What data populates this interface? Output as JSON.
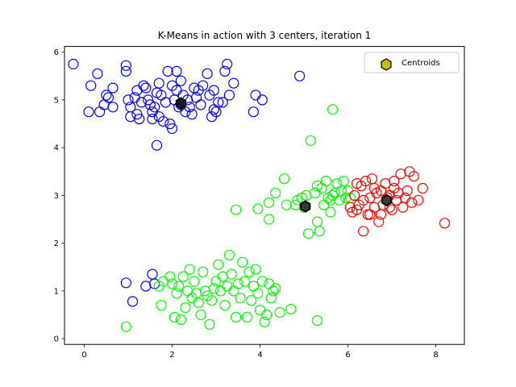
{
  "chart_data": {
    "type": "scatter",
    "title": "K-Means in action with 3 centers, iteration 1",
    "xlabel": "",
    "ylabel": "",
    "xlim": [
      -0.45,
      8.65
    ],
    "ylim": [
      -0.12,
      6.12
    ],
    "xticks": [
      0,
      2,
      4,
      6,
      8
    ],
    "yticks": [
      0,
      1,
      2,
      3,
      4,
      5,
      6
    ],
    "grid": false,
    "legend": {
      "placement": "upper right",
      "entries": [
        "Centroids"
      ]
    },
    "series": [
      {
        "color": "#0000ff",
        "marker": "open-circle",
        "points": [
          [
            -0.25,
            5.75
          ],
          [
            0.1,
            4.75
          ],
          [
            0.15,
            5.3
          ],
          [
            0.3,
            5.55
          ],
          [
            0.35,
            4.75
          ],
          [
            0.45,
            4.9
          ],
          [
            0.5,
            5.1
          ],
          [
            0.55,
            5.05
          ],
          [
            0.65,
            4.85
          ],
          [
            0.65,
            5.25
          ],
          [
            0.95,
            5.72
          ],
          [
            0.95,
            5.6
          ],
          [
            1.0,
            5.0
          ],
          [
            1.05,
            4.85
          ],
          [
            1.05,
            4.65
          ],
          [
            1.15,
            5.05
          ],
          [
            1.2,
            5.2
          ],
          [
            1.2,
            4.7
          ],
          [
            1.25,
            4.6
          ],
          [
            1.35,
            5.3
          ],
          [
            1.4,
            5.25
          ],
          [
            1.45,
            5.0
          ],
          [
            1.55,
            4.75
          ],
          [
            1.55,
            4.6
          ],
          [
            1.6,
            4.85
          ],
          [
            1.65,
            5.15
          ],
          [
            1.7,
            5.35
          ],
          [
            1.7,
            4.65
          ],
          [
            1.75,
            5.1
          ],
          [
            1.8,
            4.55
          ],
          [
            1.85,
            4.95
          ],
          [
            1.9,
            5.6
          ],
          [
            1.95,
            4.5
          ],
          [
            2.0,
            4.4
          ],
          [
            2.05,
            5.0
          ],
          [
            2.1,
            5.6
          ],
          [
            2.1,
            5.2
          ],
          [
            2.15,
            4.85
          ],
          [
            2.2,
            5.4
          ],
          [
            2.25,
            5.1
          ],
          [
            2.3,
            4.75
          ],
          [
            2.35,
            5.0
          ],
          [
            2.4,
            4.85
          ],
          [
            2.45,
            4.7
          ],
          [
            2.5,
            5.25
          ],
          [
            2.6,
            5.2
          ],
          [
            2.7,
            5.3
          ],
          [
            2.8,
            5.55
          ],
          [
            2.85,
            5.1
          ],
          [
            2.9,
            4.65
          ],
          [
            2.95,
            4.8
          ],
          [
            3.0,
            4.75
          ],
          [
            3.05,
            4.95
          ],
          [
            3.15,
            4.95
          ],
          [
            3.2,
            5.6
          ],
          [
            3.25,
            5.75
          ],
          [
            3.3,
            5.1
          ],
          [
            3.4,
            5.35
          ],
          [
            3.85,
            4.75
          ],
          [
            3.9,
            5.1
          ],
          [
            4.05,
            5.0
          ],
          [
            4.9,
            5.5
          ],
          [
            1.65,
            4.05
          ],
          [
            0.95,
            1.17
          ],
          [
            1.1,
            0.78
          ],
          [
            1.4,
            1.1
          ],
          [
            1.55,
            1.35
          ],
          [
            1.6,
            1.15
          ],
          [
            2.2,
            4.9
          ],
          [
            2.55,
            5.05
          ],
          [
            1.5,
            4.9
          ],
          [
            2.0,
            5.3
          ],
          [
            2.65,
            4.9
          ],
          [
            1.3,
            4.95
          ],
          [
            2.95,
            5.2
          ]
        ]
      },
      {
        "color": "#00ff00",
        "marker": "open-circle",
        "points": [
          [
            0.95,
            0.25
          ],
          [
            1.7,
            1.1
          ],
          [
            1.75,
            0.7
          ],
          [
            1.8,
            1.2
          ],
          [
            1.95,
            1.3
          ],
          [
            2.0,
            1.15
          ],
          [
            2.05,
            0.45
          ],
          [
            2.1,
            0.95
          ],
          [
            2.15,
            1.1
          ],
          [
            2.2,
            0.4
          ],
          [
            2.25,
            1.3
          ],
          [
            2.3,
            0.65
          ],
          [
            2.35,
            1.0
          ],
          [
            2.4,
            1.45
          ],
          [
            2.45,
            0.85
          ],
          [
            2.5,
            1.2
          ],
          [
            2.55,
            0.95
          ],
          [
            2.6,
            0.75
          ],
          [
            2.65,
            0.5
          ],
          [
            2.7,
            1.4
          ],
          [
            2.75,
            1.0
          ],
          [
            2.8,
            0.9
          ],
          [
            2.85,
            0.3
          ],
          [
            2.9,
            0.8
          ],
          [
            2.95,
            1.05
          ],
          [
            3.0,
            1.2
          ],
          [
            3.05,
            1.55
          ],
          [
            3.1,
            1.0
          ],
          [
            3.15,
            1.3
          ],
          [
            3.2,
            0.7
          ],
          [
            3.25,
            1.1
          ],
          [
            3.3,
            1.75
          ],
          [
            3.35,
            1.35
          ],
          [
            3.4,
            1.0
          ],
          [
            3.45,
            0.45
          ],
          [
            3.5,
            1.15
          ],
          [
            3.55,
            0.85
          ],
          [
            3.6,
            1.6
          ],
          [
            3.65,
            1.2
          ],
          [
            3.7,
            0.45
          ],
          [
            3.75,
            1.4
          ],
          [
            3.8,
            0.8
          ],
          [
            3.85,
            1.1
          ],
          [
            3.9,
            1.45
          ],
          [
            3.95,
            0.95
          ],
          [
            4.0,
            0.6
          ],
          [
            4.05,
            1.2
          ],
          [
            4.1,
            0.35
          ],
          [
            4.15,
            0.5
          ],
          [
            4.2,
            1.15
          ],
          [
            4.25,
            0.85
          ],
          [
            4.3,
            1.0
          ],
          [
            4.35,
            1.05
          ],
          [
            4.45,
            0.55
          ],
          [
            4.7,
            0.62
          ],
          [
            5.3,
            0.38
          ],
          [
            3.45,
            2.7
          ],
          [
            3.95,
            2.72
          ],
          [
            4.2,
            2.85
          ],
          [
            4.35,
            3.05
          ],
          [
            4.55,
            3.35
          ],
          [
            4.6,
            2.8
          ],
          [
            4.8,
            2.8
          ],
          [
            4.95,
            2.95
          ],
          [
            5.05,
            3.0
          ],
          [
            5.1,
            2.2
          ],
          [
            5.15,
            4.15
          ],
          [
            5.25,
            3.05
          ],
          [
            5.3,
            2.45
          ],
          [
            5.35,
            2.25
          ],
          [
            5.4,
            3.15
          ],
          [
            5.45,
            2.8
          ],
          [
            5.5,
            3.3
          ],
          [
            5.55,
            2.95
          ],
          [
            5.6,
            2.65
          ],
          [
            5.65,
            3.0
          ],
          [
            5.65,
            4.8
          ],
          [
            5.7,
            3.05
          ],
          [
            5.75,
            3.25
          ],
          [
            5.8,
            2.9
          ],
          [
            5.85,
            3.1
          ],
          [
            5.9,
            3.3
          ],
          [
            5.95,
            2.95
          ],
          [
            6.0,
            3.1
          ],
          [
            5.3,
            3.2
          ],
          [
            5.0,
            2.75
          ],
          [
            4.85,
            2.9
          ],
          [
            4.2,
            2.5
          ],
          [
            5.6,
            2.9
          ],
          [
            6.05,
            2.95
          ]
        ]
      },
      {
        "color": "#ff0000",
        "marker": "open-circle",
        "points": [
          [
            6.05,
            2.75
          ],
          [
            6.1,
            2.65
          ],
          [
            6.15,
            3.0
          ],
          [
            6.2,
            3.25
          ],
          [
            6.25,
            2.8
          ],
          [
            6.3,
            3.2
          ],
          [
            6.35,
            2.25
          ],
          [
            6.4,
            3.3
          ],
          [
            6.45,
            2.6
          ],
          [
            6.5,
            2.95
          ],
          [
            6.55,
            3.35
          ],
          [
            6.6,
            2.75
          ],
          [
            6.65,
            3.05
          ],
          [
            6.7,
            2.45
          ],
          [
            6.75,
            3.1
          ],
          [
            6.8,
            2.8
          ],
          [
            6.85,
            3.25
          ],
          [
            6.9,
            2.95
          ],
          [
            6.95,
            3.0
          ],
          [
            7.0,
            2.7
          ],
          [
            7.05,
            3.15
          ],
          [
            7.1,
            2.9
          ],
          [
            7.15,
            3.05
          ],
          [
            7.2,
            3.45
          ],
          [
            7.25,
            2.75
          ],
          [
            7.3,
            2.95
          ],
          [
            7.35,
            3.1
          ],
          [
            7.4,
            3.5
          ],
          [
            7.45,
            2.85
          ],
          [
            7.5,
            3.4
          ],
          [
            7.6,
            2.9
          ],
          [
            7.7,
            3.15
          ],
          [
            8.2,
            2.42
          ],
          [
            6.5,
            2.6
          ],
          [
            6.6,
            3.15
          ],
          [
            6.75,
            2.6
          ],
          [
            6.95,
            2.75
          ],
          [
            7.05,
            3.3
          ],
          [
            6.35,
            2.9
          ],
          [
            6.2,
            2.7
          ]
        ]
      }
    ],
    "centroids": {
      "name": "Centroids",
      "marker": "hexagon",
      "points": [
        {
          "x": 2.2,
          "y": 4.93,
          "color": "#1a1a1a"
        },
        {
          "x": 5.03,
          "y": 2.77,
          "color": "#3a3a3a"
        },
        {
          "x": 6.88,
          "y": 2.9,
          "color": "#3a3a3a"
        }
      ],
      "legend_fill": "#bfbf00"
    }
  }
}
